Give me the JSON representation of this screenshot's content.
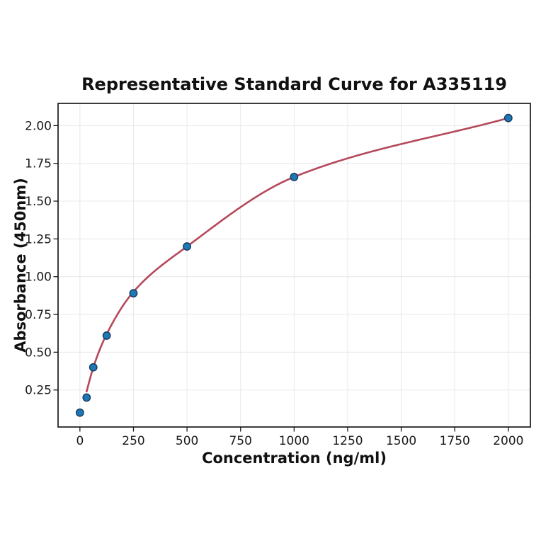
{
  "chart_data": {
    "type": "scatter",
    "title": "Representative Standard Curve for A335119",
    "xlabel": "Concentration (ng/ml)",
    "ylabel": "Absorbance (450nm)",
    "x_ticks": [
      0,
      250,
      500,
      750,
      1000,
      1250,
      1500,
      1750,
      2000
    ],
    "y_ticks": [
      0.25,
      0.5,
      0.75,
      1.0,
      1.25,
      1.5,
      1.75,
      2.0
    ],
    "xlim": [
      -102,
      2103
    ],
    "ylim": [
      0.005,
      2.147
    ],
    "grid": true,
    "legend": "none",
    "points": [
      {
        "concentration": 0,
        "absorbance": 0.1
      },
      {
        "concentration": 31.25,
        "absorbance": 0.2
      },
      {
        "concentration": 62.5,
        "absorbance": 0.4
      },
      {
        "concentration": 125,
        "absorbance": 0.61
      },
      {
        "concentration": 250,
        "absorbance": 0.89
      },
      {
        "concentration": 500,
        "absorbance": 1.2
      },
      {
        "concentration": 1000,
        "absorbance": 1.66
      },
      {
        "concentration": 2000,
        "absorbance": 2.05
      }
    ],
    "curve_anchors": [
      [
        31.25,
        0.24
      ],
      [
        62.5,
        0.4
      ],
      [
        125,
        0.62
      ],
      [
        250,
        0.9
      ],
      [
        500,
        1.2
      ],
      [
        1000,
        1.66
      ],
      [
        2000,
        2.05
      ]
    ],
    "colors": {
      "curve": "#b5495b",
      "point_fill": "#1f77b4",
      "point_edge": "#163a5f",
      "grid": "#e8e8e8",
      "axis": "#1a1a1a",
      "text": "#111111"
    }
  }
}
